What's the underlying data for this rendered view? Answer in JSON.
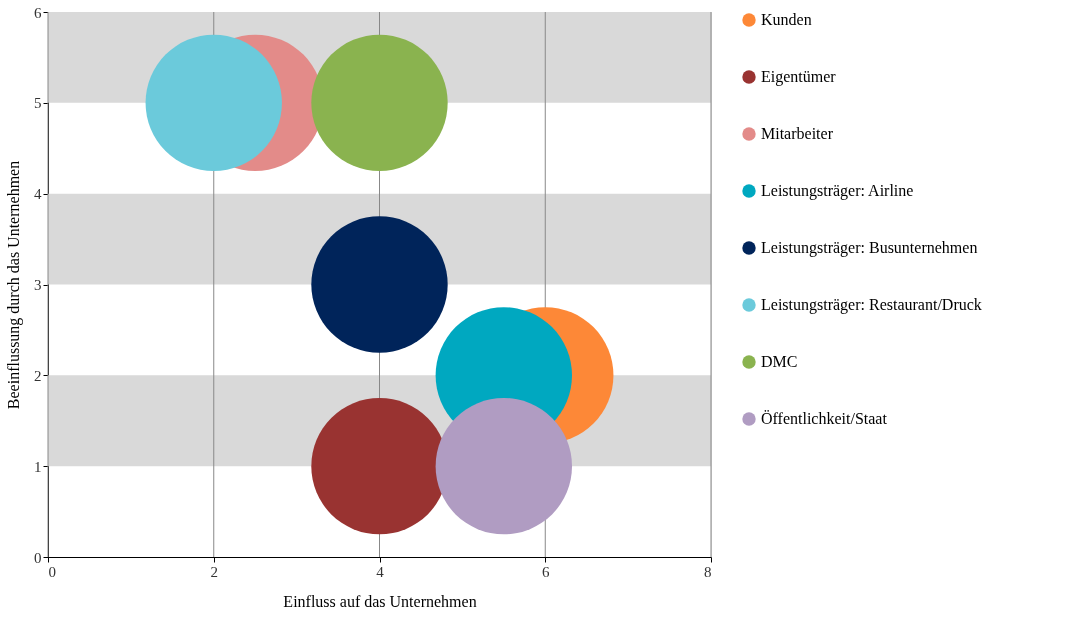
{
  "chart_data": {
    "type": "bubble",
    "xlabel": "Einfluss auf das Unternehmen",
    "ylabel": "Beeinflussung durch das Unternehmen",
    "xlim": [
      0,
      8
    ],
    "xticks": [
      0,
      2,
      4,
      6,
      8
    ],
    "ylim": [
      0,
      6
    ],
    "yticks": [
      0,
      1,
      2,
      3,
      4,
      5,
      6
    ],
    "grid": "x",
    "legend": "right",
    "bands": [
      {
        "axis": "y",
        "from": 1,
        "to": 2,
        "color": "#d9d9d9"
      },
      {
        "axis": "y",
        "from": 3,
        "to": 4,
        "color": "#d9d9d9"
      },
      {
        "axis": "y",
        "from": 5,
        "to": 6,
        "color": "#d9d9d9"
      }
    ],
    "series": [
      {
        "name": "Kunden",
        "color": "#fd8837",
        "x": [
          6
        ],
        "values": [
          2
        ],
        "sizes": [
          1
        ]
      },
      {
        "name": "Eigentümer",
        "color": "#993331",
        "x": [
          4
        ],
        "values": [
          1
        ],
        "sizes": [
          1
        ]
      },
      {
        "name": "Mitarbeiter",
        "color": "#e38b89",
        "x": [
          2.5
        ],
        "values": [
          5
        ],
        "sizes": [
          1
        ]
      },
      {
        "name": "Leistungsträger: Airline",
        "color": "#00a8c0",
        "x": [
          5.5
        ],
        "values": [
          2
        ],
        "sizes": [
          1
        ]
      },
      {
        "name": "Leistungsträger: Busunternehmen",
        "color": "#00245a",
        "x": [
          4
        ],
        "values": [
          3
        ],
        "sizes": [
          1
        ]
      },
      {
        "name": "Leistungsträger: Restaurant/Druck",
        "color": "#6bcadb",
        "x": [
          2
        ],
        "values": [
          5
        ],
        "sizes": [
          1
        ]
      },
      {
        "name": "DMC",
        "color": "#8ab34f",
        "x": [
          4
        ],
        "values": [
          5
        ],
        "sizes": [
          1
        ]
      },
      {
        "name": "Öffentlichkeit/Staat",
        "color": "#b09cc2",
        "x": [
          5.5
        ],
        "values": [
          1
        ],
        "sizes": [
          1
        ]
      }
    ]
  }
}
